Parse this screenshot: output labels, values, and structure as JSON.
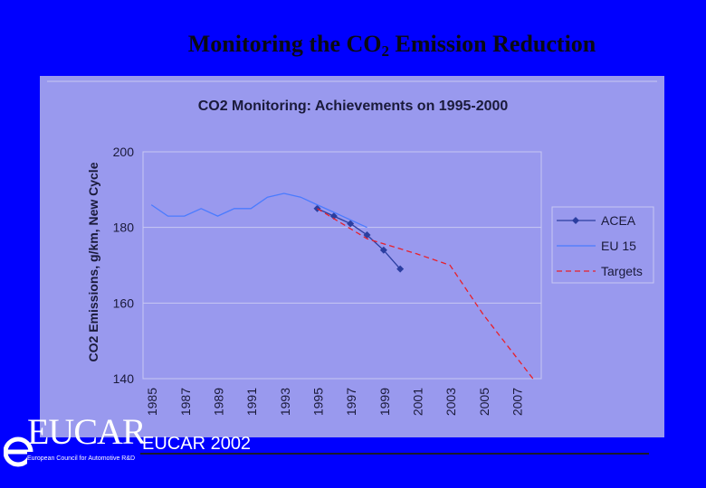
{
  "slide": {
    "title_main": "Monitoring the CO",
    "title_sub": "2",
    "title_rest": " Emission Reduction",
    "footer": "EUCAR 2002",
    "logo_word": "EUCAR",
    "logo_tagline": "European Council for Automotive R&D"
  },
  "chart_data": {
    "type": "line",
    "title": "CO2 Monitoring: Achievements on 1995-2000",
    "ylabel": "CO2 Emissions, g/km, New Cycle",
    "xlabel": "",
    "ylim": [
      140,
      200
    ],
    "xlim": [
      1984.5,
      2008.5
    ],
    "yticks": [
      140,
      160,
      180,
      200
    ],
    "xtick_labels": [
      "1985",
      "1987",
      "1989",
      "1991",
      "1993",
      "1995",
      "1997",
      "1999",
      "2001",
      "2003",
      "2005",
      "2007"
    ],
    "grid": true,
    "legend_position": "right",
    "series": [
      {
        "name": "ACEA",
        "color": "#2b3ea0",
        "dash": "",
        "marker": "diamond",
        "x": [
          1995,
          1996,
          1997,
          1998,
          1999,
          2000
        ],
        "y": [
          185,
          183,
          181,
          178,
          174,
          169
        ]
      },
      {
        "name": "EU 15",
        "color": "#4a7bff",
        "dash": "",
        "marker": "none",
        "x": [
          1985,
          1986,
          1987,
          1988,
          1989,
          1990,
          1991,
          1992,
          1993,
          1994,
          1995,
          1996,
          1997,
          1998
        ],
        "y": [
          186,
          183,
          183,
          185,
          183,
          185,
          185,
          188,
          189,
          188,
          186,
          184,
          182,
          180
        ]
      },
      {
        "name": "Targets",
        "color": "#e8202a",
        "dash": "6,4",
        "marker": "none",
        "x": [
          1995,
          1998,
          2001,
          2003,
          2005,
          2008
        ],
        "y": [
          185,
          177,
          173,
          170,
          157,
          140
        ]
      }
    ]
  }
}
